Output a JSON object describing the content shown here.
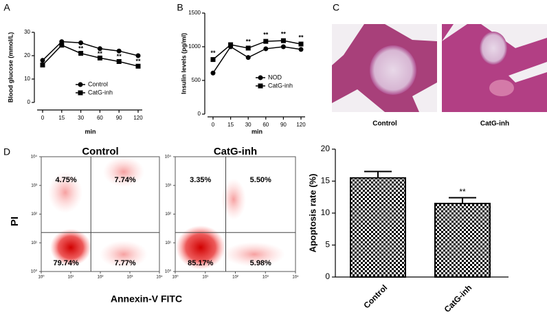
{
  "chart_data": [
    {
      "type": "line",
      "panel_label": "A",
      "ylabel": "Blood glucose  (mmol/L)",
      "xlabel": "min",
      "categories": [
        "0",
        "15",
        "30",
        "60",
        "90",
        "120"
      ],
      "series": [
        {
          "name": "Control",
          "color": "#000000",
          "marker": "circle",
          "values": [
            18,
            26,
            25.5,
            23,
            22,
            20
          ]
        },
        {
          "name": "CatG-inh",
          "color": "#000000",
          "marker": "square",
          "values": [
            16,
            24.5,
            21,
            19,
            17.5,
            15.5
          ]
        }
      ],
      "annotations": [
        null,
        null,
        "**",
        "**",
        "**",
        "**"
      ],
      "ylim": [
        0,
        30
      ],
      "yticks": [
        0,
        10,
        20,
        30
      ],
      "legend": "lower-right"
    },
    {
      "type": "line",
      "panel_label": "B",
      "ylabel": "Insulin levels (pg/ml)",
      "xlabel": "min",
      "categories": [
        "0",
        "15",
        "30",
        "60",
        "90",
        "120"
      ],
      "series": [
        {
          "name": "NOD",
          "color": "#000000",
          "marker": "circle",
          "values": [
            610,
            1000,
            840,
            970,
            1000,
            960
          ]
        },
        {
          "name": "CatG-inh",
          "color": "#000000",
          "marker": "square",
          "values": [
            810,
            1030,
            980,
            1080,
            1090,
            1040
          ]
        }
      ],
      "annotations": [
        "**",
        null,
        "**",
        "**",
        "**",
        "**"
      ],
      "ylim": [
        0,
        1500
      ],
      "yticks": [
        0,
        500,
        1000,
        1500
      ],
      "legend": "lower-right"
    },
    {
      "type": "quadrant",
      "panel_label": "D",
      "title": "Control",
      "ylabel": "PI",
      "xlabel": "Annexin-V FITC",
      "values": [
        4.75,
        7.74,
        79.74,
        7.77
      ],
      "value_labels": [
        "4.75%",
        "7.74%",
        "79.74%",
        "7.77%"
      ],
      "color": "#e00000",
      "log_scale": true,
      "xlim": [
        1,
        10000
      ],
      "ylim": [
        1,
        10000
      ],
      "xticks": [
        {
          "value": 1,
          "label": "10⁰"
        },
        {
          "value": 10,
          "label": "10¹"
        },
        {
          "value": 100,
          "label": "10²"
        },
        {
          "value": 1000,
          "label": "10³"
        },
        {
          "value": 10000,
          "label": "10⁴"
        }
      ],
      "yticks": [
        {
          "value": 1,
          "label": "10⁰"
        },
        {
          "value": 10,
          "label": "10¹"
        },
        {
          "value": 100,
          "label": "10²"
        },
        {
          "value": 1000,
          "label": "10³"
        },
        {
          "value": 10000,
          "label": "10⁴"
        }
      ]
    },
    {
      "type": "quadrant",
      "title": "CatG-inh",
      "values": [
        3.35,
        5.5,
        85.17,
        5.98
      ],
      "value_labels": [
        "3.35%",
        "5.50%",
        "85.17%",
        "5.98%"
      ],
      "color": "#e00000",
      "log_scale": true,
      "xlim": [
        1,
        10000
      ],
      "ylim": [
        1,
        10000
      ],
      "xticks": [
        {
          "value": 1,
          "label": "10⁰"
        },
        {
          "value": 10,
          "label": "10¹"
        },
        {
          "value": 100,
          "label": "10²"
        },
        {
          "value": 1000,
          "label": "10³"
        },
        {
          "value": 10000,
          "label": "10⁴"
        }
      ],
      "yticks": [
        {
          "value": 1,
          "label": "10⁰"
        },
        {
          "value": 10,
          "label": "10¹"
        },
        {
          "value": 100,
          "label": "10²"
        },
        {
          "value": 1000,
          "label": "10³"
        },
        {
          "value": 10000,
          "label": "10⁴"
        }
      ]
    },
    {
      "type": "bar",
      "ylabel": "Apoptosis rate (%)",
      "categories": [
        "Control",
        "CatG-inh"
      ],
      "values": [
        15.5,
        11.5
      ],
      "errors": [
        1.0,
        0.9
      ],
      "annotations": [
        null,
        "**"
      ],
      "color": "#000000",
      "ylim": [
        0,
        20
      ],
      "yticks": [
        0,
        5,
        10,
        15,
        20
      ]
    }
  ],
  "histology": {
    "panel_label": "C",
    "captions": [
      "Control",
      "CatG-inh"
    ]
  }
}
